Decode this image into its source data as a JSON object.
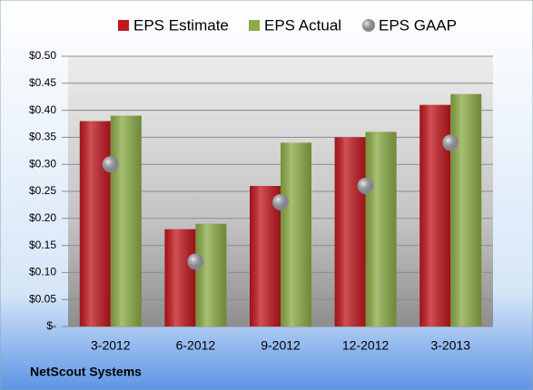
{
  "chart_data": {
    "type": "bar",
    "categories": [
      "3-2012",
      "6-2012",
      "9-2012",
      "12-2012",
      "3-2013"
    ],
    "series": [
      {
        "name": "EPS Estimate",
        "color": "#c0171d",
        "values": [
          0.38,
          0.18,
          0.26,
          0.35,
          0.41
        ]
      },
      {
        "name": "EPS Actual",
        "color": "#8bab45",
        "values": [
          0.39,
          0.19,
          0.34,
          0.36,
          0.43
        ]
      },
      {
        "name": "EPS GAAP",
        "color": "#a3a6ab",
        "type": "scatter",
        "values": [
          0.3,
          0.12,
          0.23,
          0.26,
          0.34
        ]
      }
    ],
    "ylim": [
      0,
      0.5
    ],
    "yticks": [
      {
        "value": 0,
        "label": "$-"
      },
      {
        "value": 0.05,
        "label": "$0.05"
      },
      {
        "value": 0.1,
        "label": "$0.10"
      },
      {
        "value": 0.15,
        "label": "$0.15"
      },
      {
        "value": 0.2,
        "label": "$0.20"
      },
      {
        "value": 0.25,
        "label": "$0.25"
      },
      {
        "value": 0.3,
        "label": "$0.30"
      },
      {
        "value": 0.35,
        "label": "$0.35"
      },
      {
        "value": 0.4,
        "label": "$0.40"
      },
      {
        "value": 0.45,
        "label": "$0.45"
      },
      {
        "value": 0.5,
        "label": "$0.50"
      }
    ],
    "grid": true,
    "legend": "top",
    "footer": "NetScout Systems"
  }
}
